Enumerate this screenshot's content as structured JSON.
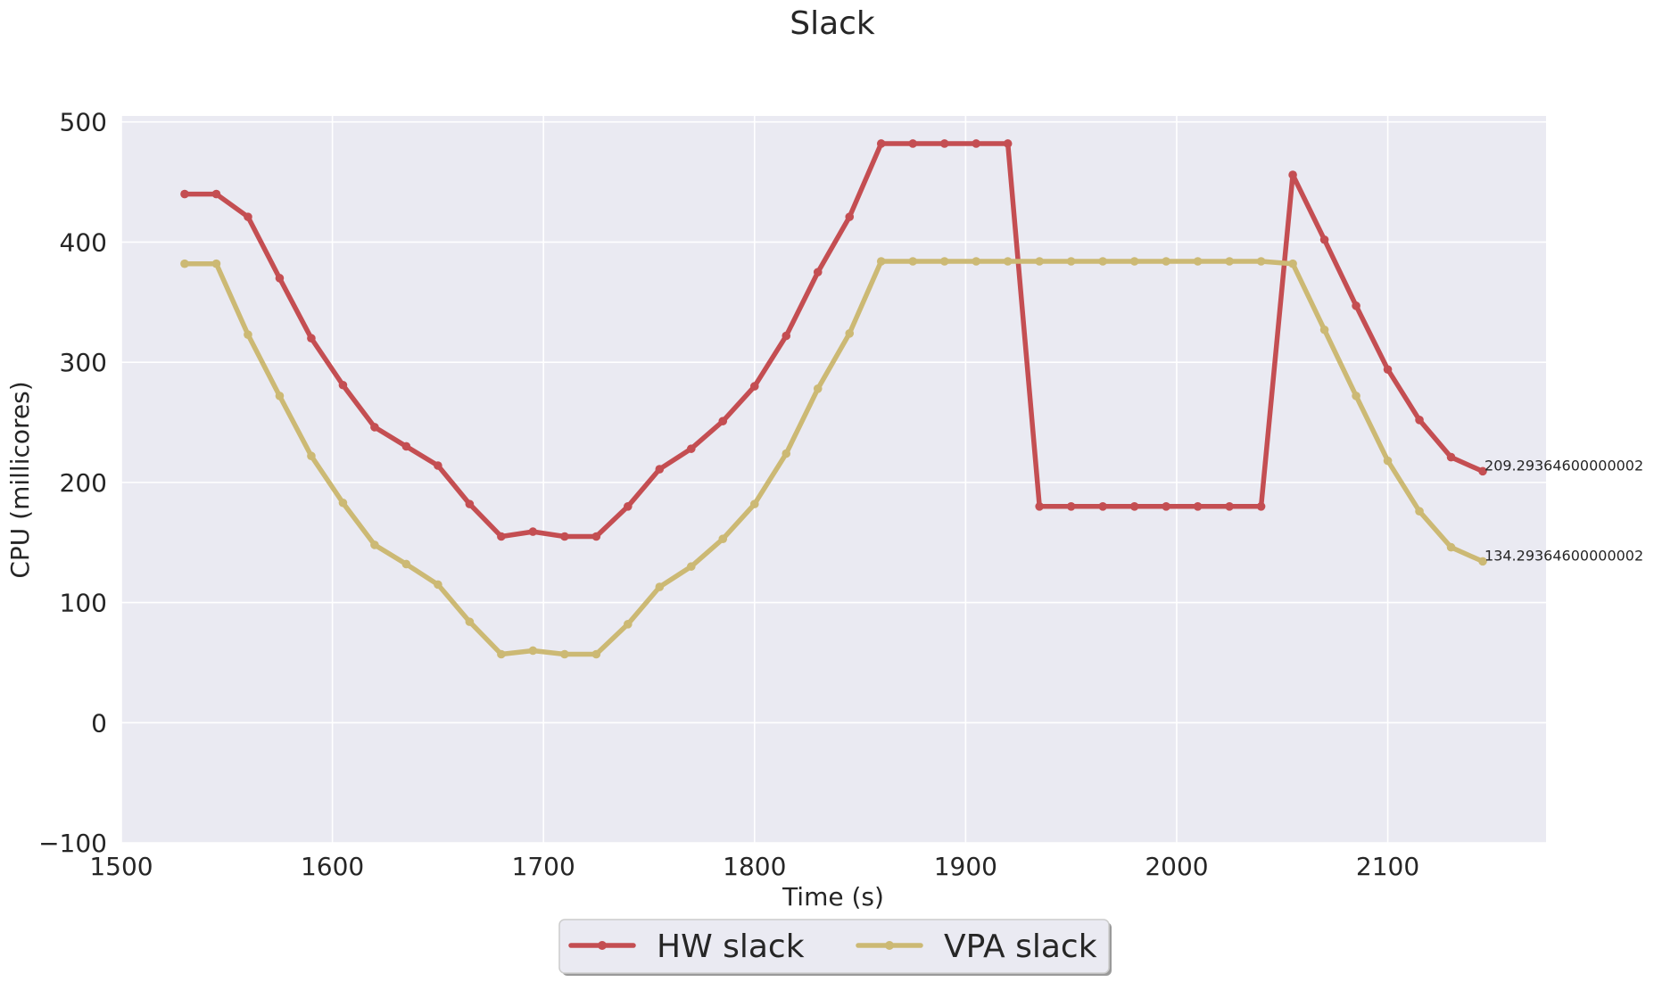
{
  "chart_data": {
    "type": "line",
    "title": "Slack",
    "xlabel": "Time (s)",
    "ylabel": "CPU (millicores)",
    "xlim": [
      1500,
      2175
    ],
    "ylim": [
      -100,
      505
    ],
    "xticks": [
      1500,
      1600,
      1700,
      1800,
      1900,
      2000,
      2100
    ],
    "yticks": [
      -100,
      0,
      100,
      200,
      300,
      400,
      500
    ],
    "ytick_labels": [
      "−100",
      "0",
      "100",
      "200",
      "300",
      "400",
      "500"
    ],
    "grid": true,
    "legend": "bottom-center",
    "x": [
      1530,
      1545,
      1560,
      1575,
      1590,
      1605,
      1620,
      1635,
      1650,
      1665,
      1680,
      1695,
      1710,
      1725,
      1740,
      1755,
      1770,
      1785,
      1800,
      1815,
      1830,
      1845,
      1860,
      1875,
      1890,
      1905,
      1920,
      1935,
      1950,
      1965,
      1980,
      1995,
      2010,
      2025,
      2040,
      2055,
      2070,
      2085,
      2100,
      2115,
      2130,
      2145
    ],
    "series": [
      {
        "name": "HW slack",
        "color": "#c44e52",
        "values": [
          440,
          440,
          421,
          370,
          320,
          281,
          246,
          230,
          214,
          182,
          155,
          159,
          155,
          155,
          180,
          211,
          228,
          251,
          280,
          322,
          375,
          421,
          482,
          482,
          482,
          482,
          482,
          180,
          180,
          180,
          180,
          180,
          180,
          180,
          180,
          456,
          402,
          347,
          294,
          252,
          221,
          209.29
        ]
      },
      {
        "name": "VPA slack",
        "color": "#ccb974",
        "values": [
          382,
          382,
          323,
          272,
          222,
          183,
          148,
          132,
          115,
          84,
          57,
          60,
          57,
          57,
          82,
          113,
          130,
          153,
          182,
          224,
          278,
          324,
          384,
          384,
          384,
          384,
          384,
          384,
          384,
          384,
          384,
          384,
          384,
          384,
          384,
          382,
          327,
          272,
          218,
          176,
          146,
          134.29
        ]
      }
    ],
    "annotations": [
      {
        "text": "209.29364600000002",
        "x": 2145,
        "y": 209.29
      },
      {
        "text": "134.29364600000002",
        "x": 2145,
        "y": 134.29
      }
    ]
  }
}
